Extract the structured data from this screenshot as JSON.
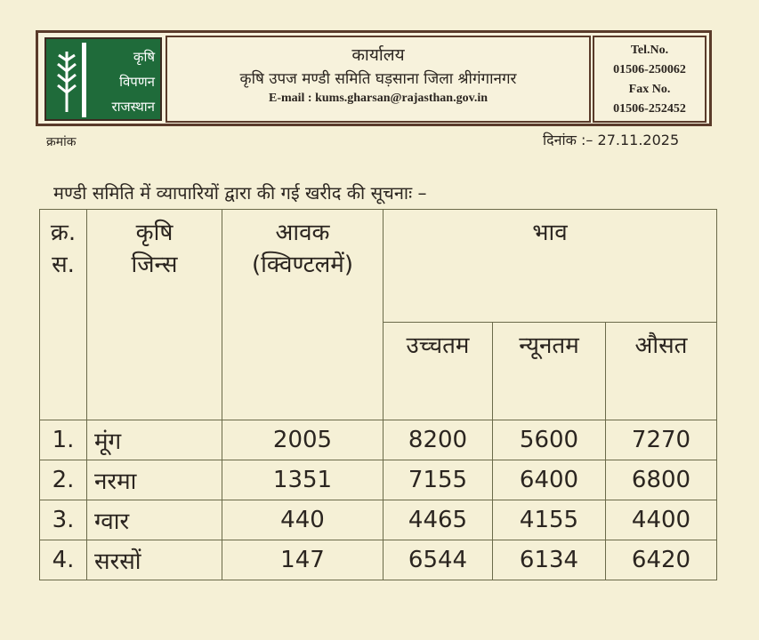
{
  "header": {
    "logo_text": [
      "कृषि",
      "विपणन",
      "राजस्थान"
    ],
    "office": "कार्यालय",
    "committee": "कृषि उपज मण्डी समिति घड़साना जिला श्रीगंगानगर",
    "email": "E-mail : kums.gharsan@rajasthan.gov.in",
    "tel_label": "Tel.No.",
    "tel": "01506-250062",
    "fax_label": "Fax No.",
    "fax": "01506-252452"
  },
  "kramank": "क्रमांक",
  "date": "दिनांक :– 27.11.2025",
  "subject": "मण्डी समिति में व्यापारियों द्वारा की गई खरीद की सूचनाः –",
  "table": {
    "headers": {
      "sno": "क्र. स.",
      "crop": "कृषि जिन्स",
      "arrival": "आवक (क्विण्टलमें)",
      "price": "भाव",
      "high": "उच्चतम",
      "low": "न्यूनतम",
      "avg": "औसत"
    },
    "rows": [
      {
        "sno": "1.",
        "crop": "मूंग",
        "arrival": "2005",
        "high": "8200",
        "low": "5600",
        "avg": "7270"
      },
      {
        "sno": "2.",
        "crop": "नरमा",
        "arrival": "1351",
        "high": "7155",
        "low": "6400",
        "avg": "6800"
      },
      {
        "sno": "3.",
        "crop": "ग्वार",
        "arrival": "440",
        "high": "4465",
        "low": "4155",
        "avg": "4400"
      },
      {
        "sno": "4.",
        "crop": "सरसों",
        "arrival": "147",
        "high": "6544",
        "low": "6134",
        "avg": "6420"
      }
    ]
  }
}
